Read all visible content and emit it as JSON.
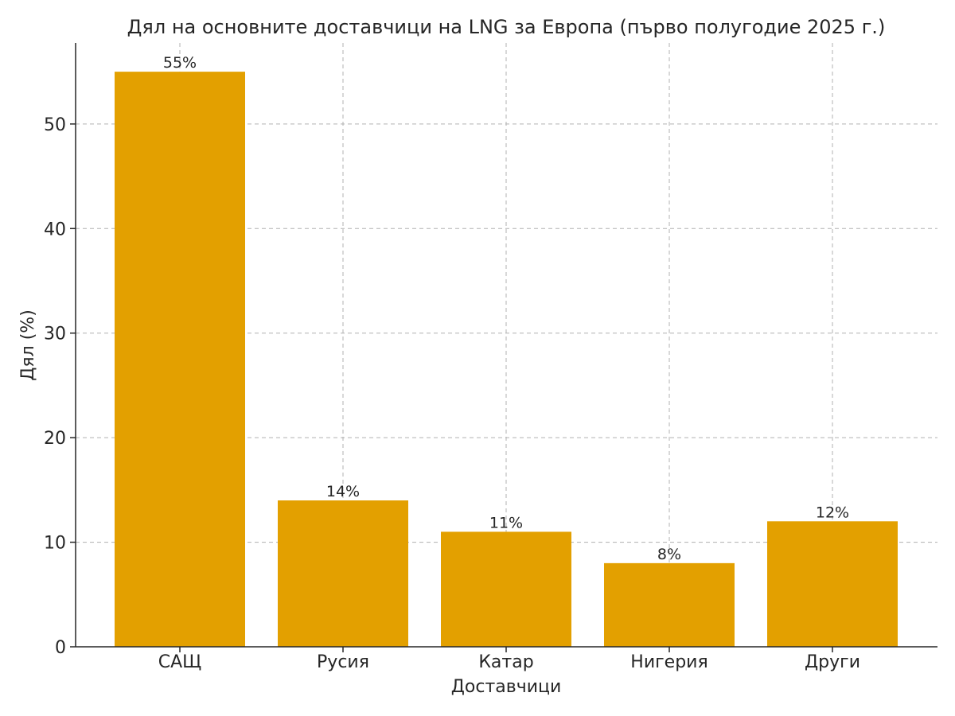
{
  "chart_data": {
    "type": "bar",
    "title": "Дял на основните доставчици на LNG за Европа (първо полугодие 2025 г.)",
    "xlabel": "Доставчици",
    "ylabel": "Дял (%)",
    "categories": [
      "САЩ",
      "Русия",
      "Катар",
      "Нигерия",
      "Други"
    ],
    "values": [
      55,
      14,
      11,
      8,
      12
    ],
    "data_labels": [
      "55%",
      "14%",
      "11%",
      "8%",
      "12%"
    ],
    "ylim": [
      0,
      57.75
    ],
    "yticks": [
      0,
      10,
      20,
      30,
      40,
      50
    ],
    "grid": true,
    "bar_color": "#E3A000"
  }
}
